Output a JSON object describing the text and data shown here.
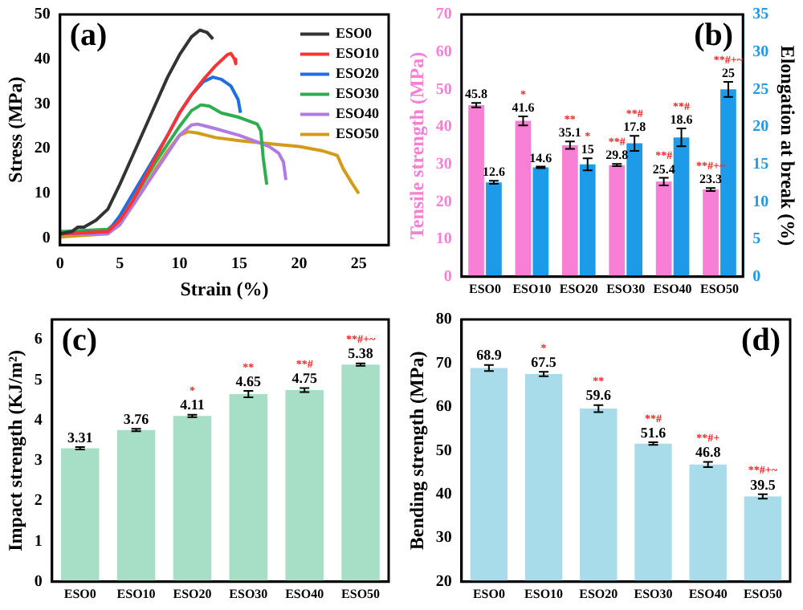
{
  "chart_data": [
    {
      "type": "line",
      "title": "(a)",
      "xlabel": "Strain (%)",
      "ylabel": "Stress (MPa)",
      "xlim": [
        0,
        27.5
      ],
      "xticks": [
        0,
        5,
        10,
        15,
        20,
        25
      ],
      "ylim": [
        -1.5,
        50
      ],
      "yticks": [
        0,
        10,
        20,
        30,
        40,
        50
      ],
      "grid": false,
      "legend": "top right",
      "marker": "none",
      "line_style": "solid",
      "series": [
        {
          "name": "ESO0",
          "color": "#333333",
          "x": [
            0,
            1,
            1.5,
            2,
            3,
            4,
            5,
            6,
            7,
            8,
            9,
            10,
            11,
            11.7,
            12.3,
            12.8
          ],
          "values": [
            1,
            1.5,
            2.5,
            2.5,
            4,
            6.5,
            12,
            18,
            24,
            30,
            36,
            41,
            45,
            46.5,
            46,
            44.5
          ]
        },
        {
          "name": "ESO10",
          "color": "#ff3333",
          "x": [
            0,
            4,
            5,
            6,
            7,
            8,
            9,
            10,
            11,
            12,
            13,
            14,
            14.3,
            14.6,
            14.7
          ],
          "values": [
            1,
            1.5,
            4,
            8,
            13,
            18,
            23,
            28,
            32,
            35.5,
            38.5,
            41,
            41.3,
            40,
            39
          ]
        },
        {
          "name": "ESO20",
          "color": "#1f6fe0",
          "x": [
            0,
            4,
            5,
            6,
            7,
            8,
            9,
            10,
            11,
            12,
            12.8,
            13.5,
            14.3,
            14.9,
            15.1
          ],
          "values": [
            1,
            1.5,
            5,
            9.5,
            14,
            18.5,
            23,
            28,
            32,
            35,
            36,
            35.5,
            34,
            31,
            28
          ]
        },
        {
          "name": "ESO30",
          "color": "#2fae4f",
          "x": [
            0,
            4,
            5,
            6,
            7,
            8,
            9,
            10,
            11,
            11.8,
            12.5,
            13.5,
            15,
            16.5,
            16.8,
            17,
            17.3
          ],
          "values": [
            1.5,
            2,
            4,
            8,
            12.5,
            17,
            21,
            25,
            28.5,
            29.8,
            29.5,
            28,
            27,
            25.5,
            24,
            18,
            12
          ]
        },
        {
          "name": "ESO40",
          "color": "#b07be0",
          "x": [
            0,
            4,
            5,
            6,
            7,
            8,
            9,
            10,
            11,
            11.5,
            13,
            15,
            16.5,
            17.5,
            18.3,
            18.7,
            18.9
          ],
          "values": [
            1,
            1,
            3,
            7,
            11,
            15,
            19,
            23,
            25.3,
            25.5,
            24.5,
            23,
            21.5,
            20.5,
            19,
            17,
            13
          ]
        },
        {
          "name": "ESO50",
          "color": "#d49a1a",
          "x": [
            0,
            4,
            5,
            6,
            7,
            8,
            9,
            10,
            10.7,
            11.5,
            13,
            15,
            18,
            20,
            22,
            23.2,
            23.7,
            24.5,
            25
          ],
          "values": [
            0.3,
            1,
            3.5,
            7,
            11,
            15.5,
            19.5,
            23,
            23.8,
            23.5,
            22.5,
            21.8,
            21,
            20.5,
            19.5,
            18.5,
            15.5,
            12,
            10
          ]
        }
      ]
    },
    {
      "type": "bar",
      "title": "(b)",
      "ylabel": "Tensile strength (MPa)",
      "y2label": "Elongation at break (%)",
      "categories": [
        "ESO0",
        "ESO10",
        "ESO20",
        "ESO30",
        "ESO40",
        "ESO50"
      ],
      "ylim": [
        0,
        70
      ],
      "yticks": [
        0,
        10,
        20,
        30,
        40,
        50,
        60,
        70
      ],
      "y2lim": [
        0,
        35
      ],
      "y2ticks": [
        0,
        5,
        10,
        15,
        20,
        25,
        30,
        35
      ],
      "grid": false,
      "legend": false,
      "data_labels": true,
      "series": [
        {
          "color": "#f77fd6",
          "values": [
            45.8,
            41.6,
            35.1,
            29.8,
            25.4,
            23.3
          ],
          "errors": [
            0.6,
            1.2,
            1,
            0.3,
            1,
            0.4
          ]
        },
        {
          "color": "#1e9be8",
          "axis": "y2",
          "values": [
            12.6,
            14.6,
            15,
            17.8,
            18.6,
            25
          ],
          "errors": [
            0.2,
            0.1,
            0.8,
            1,
            1.2,
            1
          ]
        }
      ],
      "annotations": [
        "*",
        "**",
        "*",
        "**#",
        "**#",
        "**#",
        "**#",
        "**#+~",
        "**#+~"
      ]
    },
    {
      "type": "bar",
      "title": "(c)",
      "ylabel": "Impact strength (KJ/m²)",
      "categories": [
        "ESO0",
        "ESO10",
        "ESO20",
        "ESO30",
        "ESO40",
        "ESO50"
      ],
      "ylim": [
        0,
        6.5
      ],
      "yticks": [
        0,
        1,
        2,
        3,
        4,
        5,
        6
      ],
      "grid": false,
      "legend": false,
      "data_labels": true,
      "series": [
        {
          "color": "#a6dfc6",
          "values": [
            3.31,
            3.76,
            4.11,
            4.65,
            4.75,
            5.38
          ],
          "errors": [
            0.03,
            0.03,
            0.03,
            0.08,
            0.05,
            0.03
          ]
        }
      ],
      "annotations": [
        "*",
        "**",
        "**#",
        "**#+~"
      ]
    },
    {
      "type": "bar",
      "title": "(d)",
      "ylabel": "Bending strength (MPa)",
      "categories": [
        "ESO0",
        "ESO10",
        "ESO20",
        "ESO30",
        "ESO40",
        "ESO50"
      ],
      "ylim": [
        20,
        80
      ],
      "yticks": [
        20,
        30,
        40,
        50,
        60,
        70,
        80
      ],
      "grid": false,
      "legend": false,
      "data_labels": true,
      "series": [
        {
          "color": "#a9dcea",
          "values": [
            68.9,
            67.5,
            59.6,
            51.6,
            46.8,
            39.5
          ],
          "errors": [
            0.7,
            0.5,
            0.8,
            0.3,
            0.6,
            0.5
          ]
        }
      ],
      "annotations": [
        "*",
        "**",
        "**#",
        "**#+",
        "**#+~"
      ]
    }
  ]
}
